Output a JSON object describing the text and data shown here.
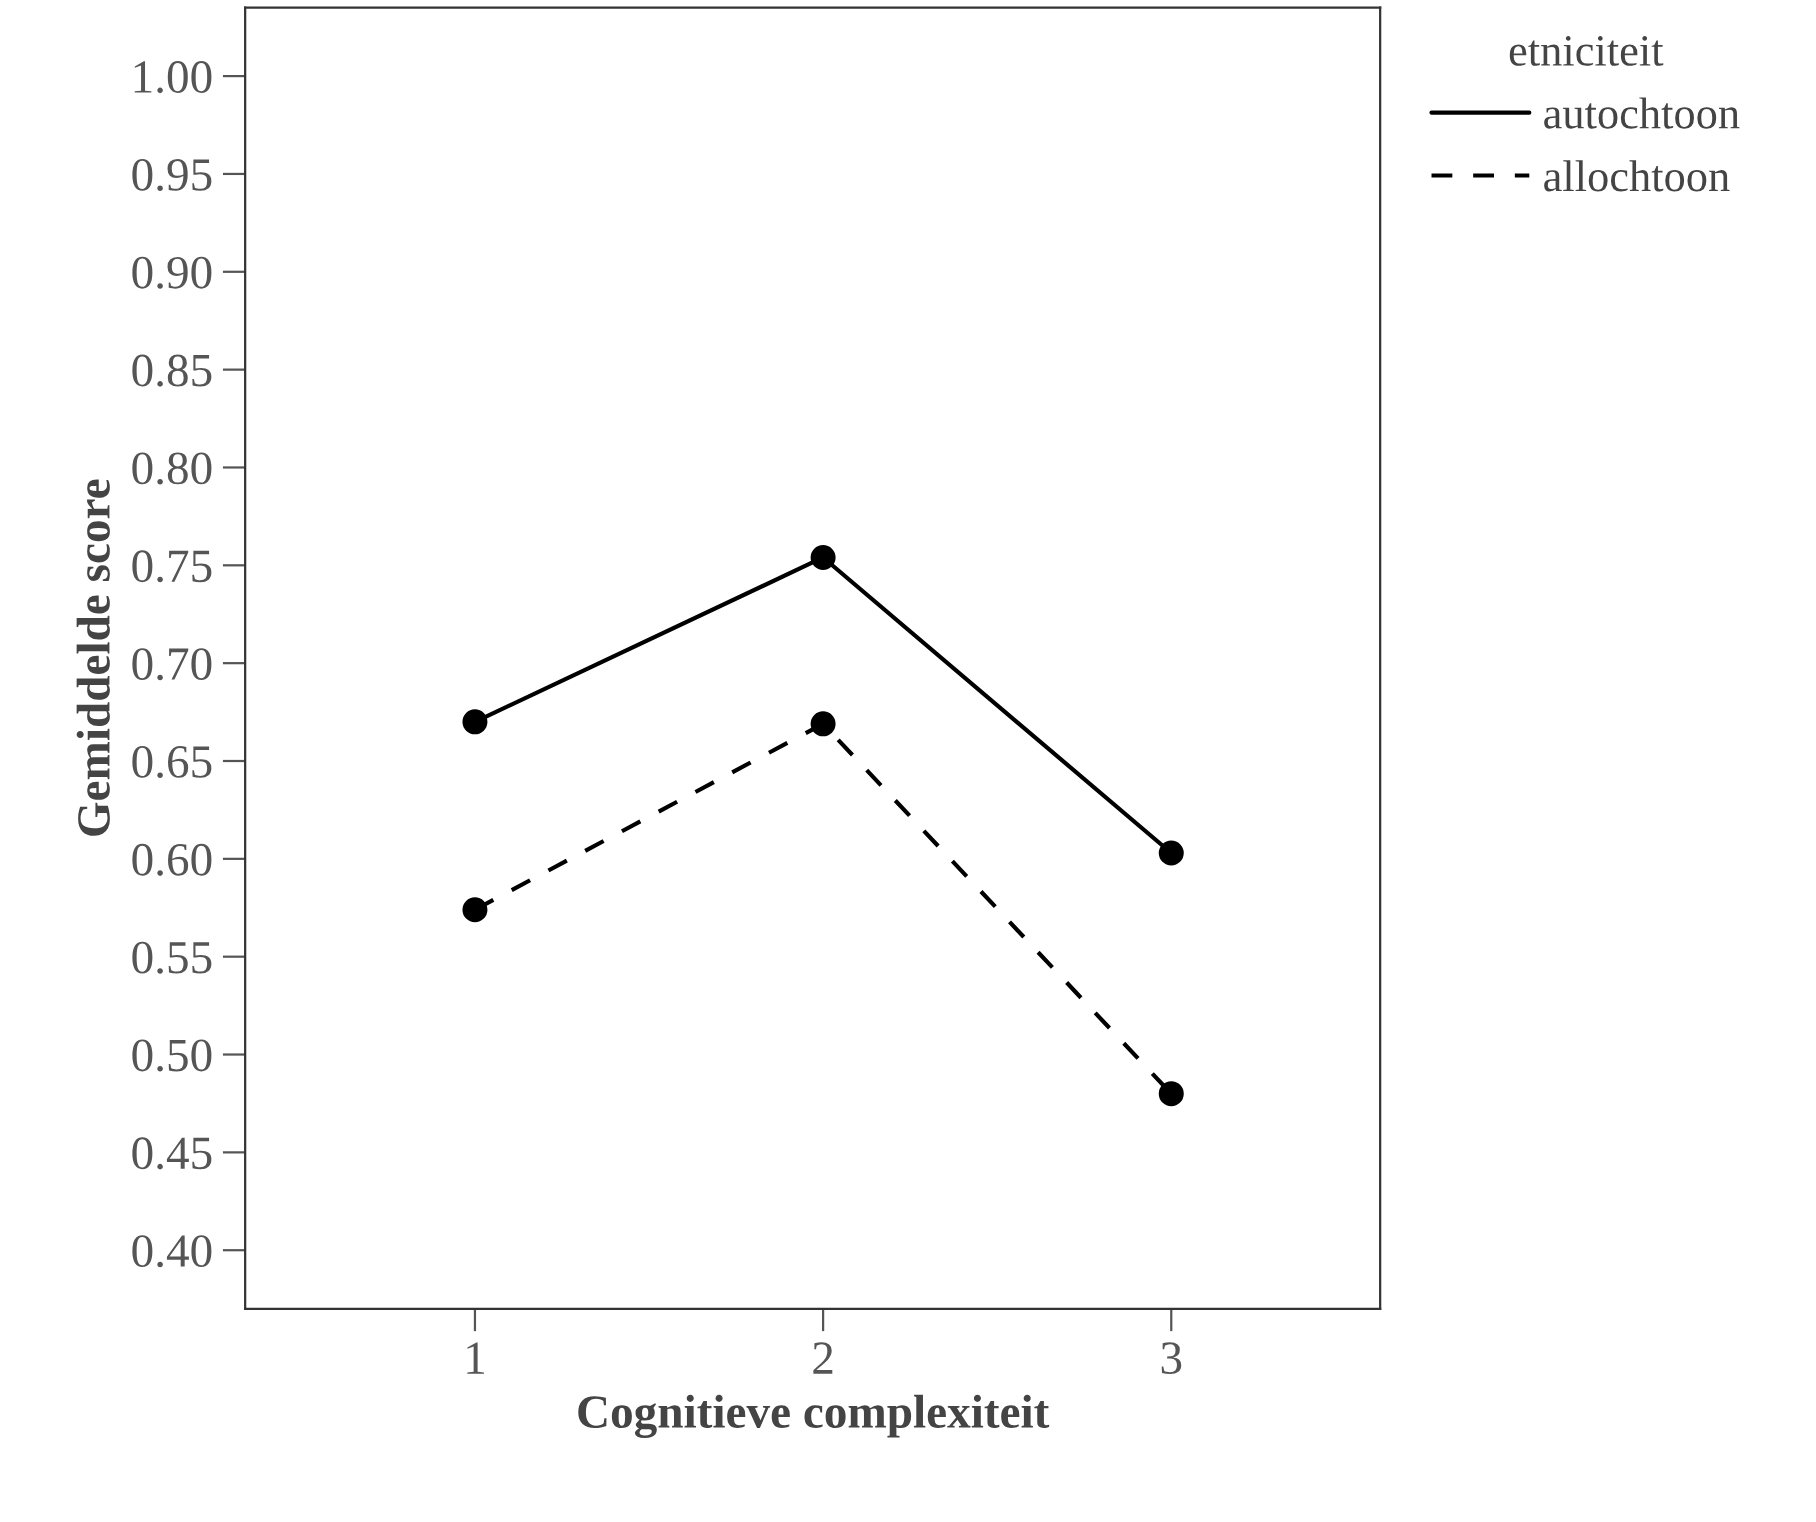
{
  "chart_data": {
    "type": "line",
    "xlabel": "Cognitieve complexiteit",
    "ylabel": "Gemiddelde score",
    "legend_title": "etniciteit",
    "categories": [
      "1",
      "2",
      "3"
    ],
    "series": [
      {
        "name": "autochtoon",
        "color": "#000000",
        "values": [
          0.67,
          0.754,
          0.603
        ],
        "line_style": "solid"
      },
      {
        "name": "allochtoon",
        "color": "#000000",
        "values": [
          0.574,
          0.669,
          0.48
        ],
        "line_style": "dashed"
      }
    ],
    "ylim": [
      0.37,
      1.035
    ],
    "yticks": [
      {
        "value": 0.4,
        "label": "0.40"
      },
      {
        "value": 0.45,
        "label": "0.45"
      },
      {
        "value": 0.5,
        "label": "0.50"
      },
      {
        "value": 0.55,
        "label": "0.55"
      },
      {
        "value": 0.6,
        "label": "0.60"
      },
      {
        "value": 0.65,
        "label": "0.65"
      },
      {
        "value": 0.7,
        "label": "0.70"
      },
      {
        "value": 0.75,
        "label": "0.75"
      },
      {
        "value": 0.8,
        "label": "0.80"
      },
      {
        "value": 0.85,
        "label": "0.85"
      },
      {
        "value": 0.9,
        "label": "0.90"
      },
      {
        "value": 0.95,
        "label": "0.95"
      },
      {
        "value": 1.0,
        "label": "1.00"
      }
    ],
    "grid": false,
    "legend": "top right",
    "marker": "circle"
  }
}
